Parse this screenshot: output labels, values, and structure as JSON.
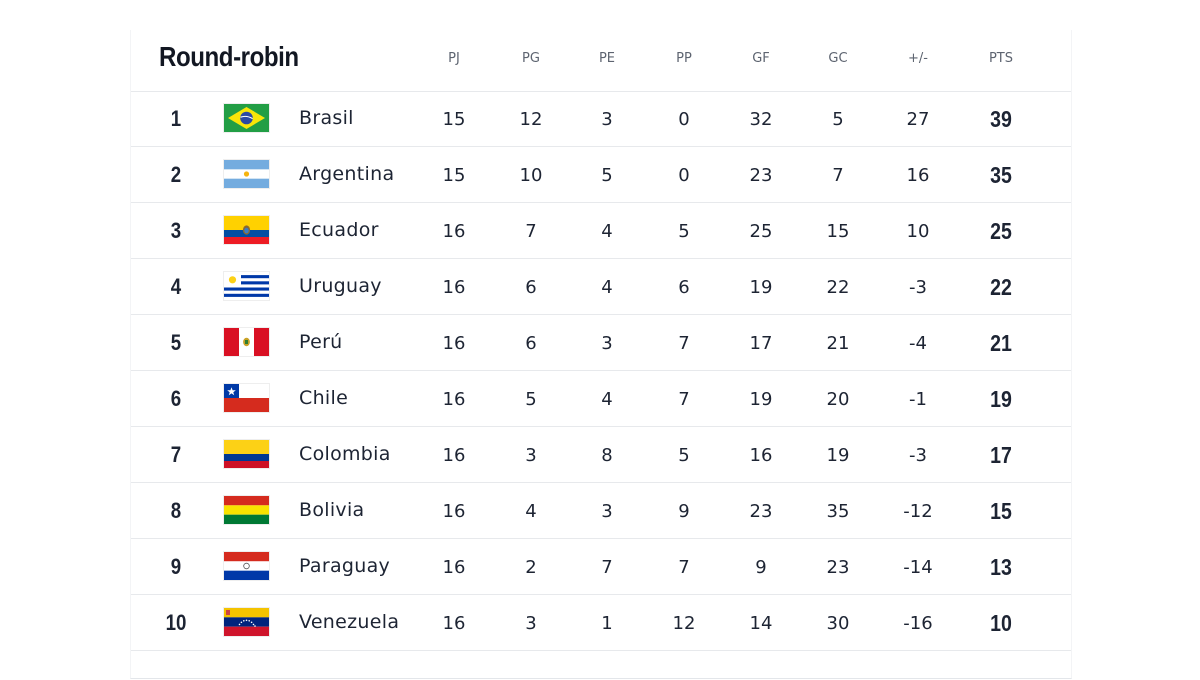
{
  "table": {
    "title": "Round-robin",
    "columns": [
      "PJ",
      "PG",
      "PE",
      "PP",
      "GF",
      "GC",
      "+/-",
      "PTS"
    ],
    "rows": [
      {
        "pos": "1",
        "team": "Brasil",
        "flag": "brazil-flag-icon",
        "pj": "15",
        "pg": "12",
        "pe": "3",
        "pp": "0",
        "gf": "32",
        "gc": "5",
        "diff": "27",
        "pts": "39"
      },
      {
        "pos": "2",
        "team": "Argentina",
        "flag": "argentina-flag-icon",
        "pj": "15",
        "pg": "10",
        "pe": "5",
        "pp": "0",
        "gf": "23",
        "gc": "7",
        "diff": "16",
        "pts": "35"
      },
      {
        "pos": "3",
        "team": "Ecuador",
        "flag": "ecuador-flag-icon",
        "pj": "16",
        "pg": "7",
        "pe": "4",
        "pp": "5",
        "gf": "25",
        "gc": "15",
        "diff": "10",
        "pts": "25"
      },
      {
        "pos": "4",
        "team": "Uruguay",
        "flag": "uruguay-flag-icon",
        "pj": "16",
        "pg": "6",
        "pe": "4",
        "pp": "6",
        "gf": "19",
        "gc": "22",
        "diff": "-3",
        "pts": "22"
      },
      {
        "pos": "5",
        "team": "Perú",
        "flag": "peru-flag-icon",
        "pj": "16",
        "pg": "6",
        "pe": "3",
        "pp": "7",
        "gf": "17",
        "gc": "21",
        "diff": "-4",
        "pts": "21"
      },
      {
        "pos": "6",
        "team": "Chile",
        "flag": "chile-flag-icon",
        "pj": "16",
        "pg": "5",
        "pe": "4",
        "pp": "7",
        "gf": "19",
        "gc": "20",
        "diff": "-1",
        "pts": "19"
      },
      {
        "pos": "7",
        "team": "Colombia",
        "flag": "colombia-flag-icon",
        "pj": "16",
        "pg": "3",
        "pe": "8",
        "pp": "5",
        "gf": "16",
        "gc": "19",
        "diff": "-3",
        "pts": "17"
      },
      {
        "pos": "8",
        "team": "Bolivia",
        "flag": "bolivia-flag-icon",
        "pj": "16",
        "pg": "4",
        "pe": "3",
        "pp": "9",
        "gf": "23",
        "gc": "35",
        "diff": "-12",
        "pts": "15"
      },
      {
        "pos": "9",
        "team": "Paraguay",
        "flag": "paraguay-flag-icon",
        "pj": "16",
        "pg": "2",
        "pe": "7",
        "pp": "7",
        "gf": "9",
        "gc": "23",
        "diff": "-14",
        "pts": "13"
      },
      {
        "pos": "10",
        "team": "Venezuela",
        "flag": "venezuela-flag-icon",
        "pj": "16",
        "pg": "3",
        "pe": "1",
        "pp": "12",
        "gf": "14",
        "gc": "30",
        "diff": "-16",
        "pts": "10"
      }
    ]
  }
}
